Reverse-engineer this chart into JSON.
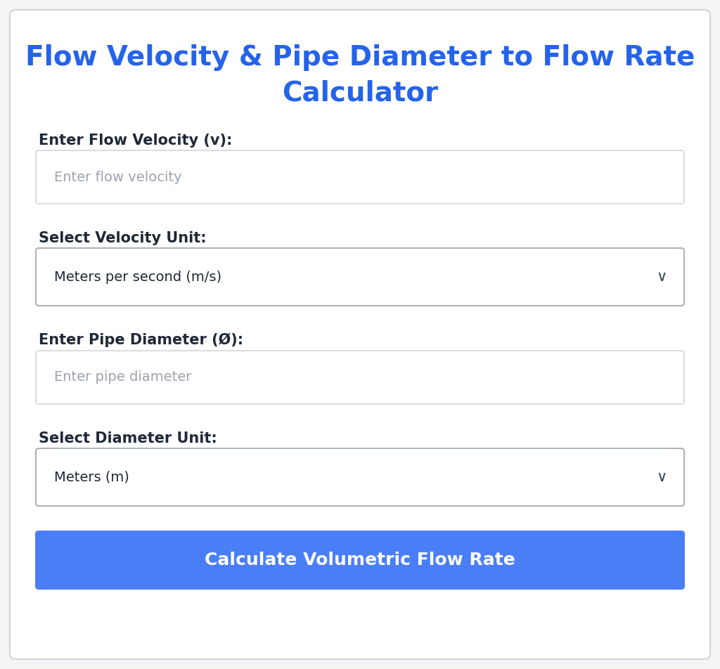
{
  "title_line1": "Flow Velocity & Pipe Diameter to Flow Rate",
  "title_line2": "Calculator",
  "title_color": "#2563EB",
  "title_fontsize": 28,
  "bg_outer": "#F3F4F6",
  "bg_card": "#FFFFFF",
  "label1": "Enter Flow Velocity (v):",
  "placeholder1": "Enter flow velocity",
  "label2": "Select Velocity Unit:",
  "dropdown1_value": "Meters per second (m/s)",
  "label3": "Enter Pipe Diameter (Ø):",
  "placeholder3": "Enter pipe diameter",
  "label4": "Select Diameter Unit:",
  "dropdown2_value": "Meters (m)",
  "button_text": "Calculate Volumetric Flow Rate",
  "button_color": "#4A7EF7",
  "button_text_color": "#FFFFFF",
  "label_color": "#1F2937",
  "label_fontsize": 15,
  "placeholder_color": "#9CA3AF",
  "placeholder_fontsize": 14,
  "dropdown_text_color": "#1F2937",
  "dropdown_fontsize": 14,
  "input_bg": "#FFFFFF",
  "input_border": "#D1D5DB",
  "dropdown_bg": "#FFFFFF",
  "dropdown_border": "#9CA3AF",
  "button_fontsize": 18,
  "card_edge_color": "#D1D5DB"
}
